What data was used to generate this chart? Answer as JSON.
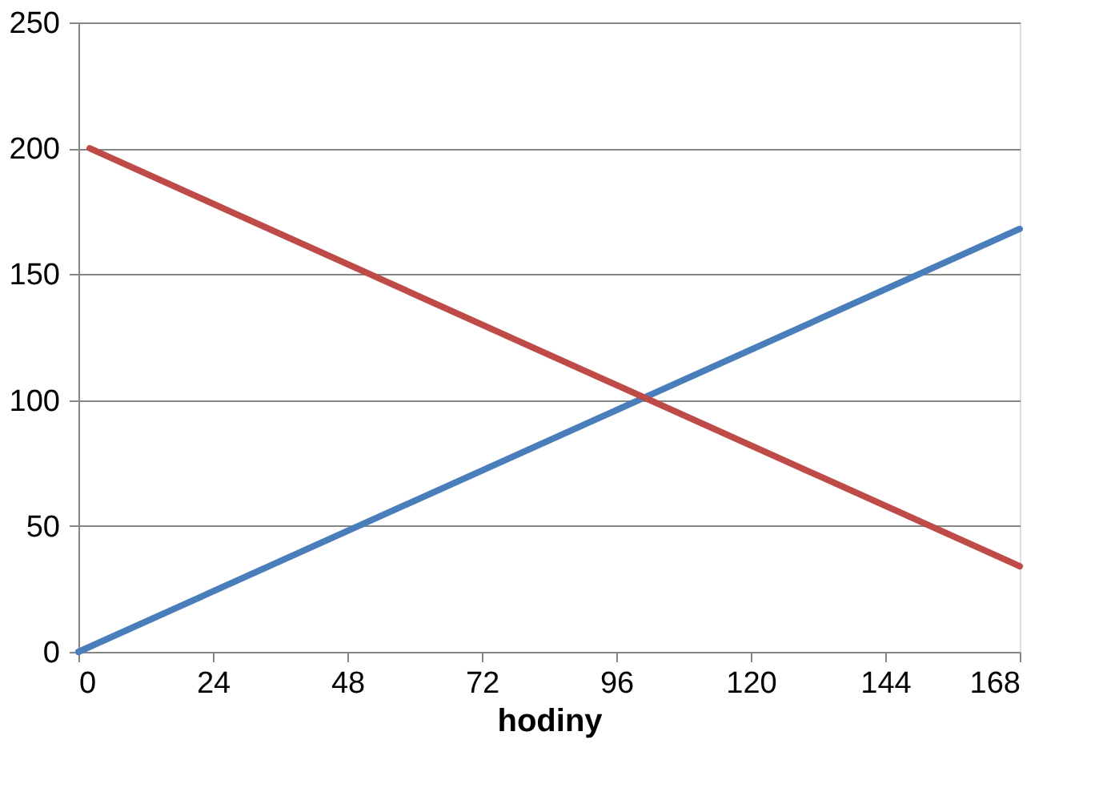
{
  "chart_data": {
    "type": "line",
    "xlabel": "hodiny",
    "xlim": [
      0,
      168
    ],
    "xticks": [
      0,
      24,
      48,
      72,
      96,
      120,
      144,
      168
    ],
    "ylim": [
      0,
      250
    ],
    "yticks": [
      0,
      50,
      100,
      150,
      200,
      250
    ],
    "grid": "y",
    "marker": "none",
    "line_style": "solid",
    "series": [
      {
        "color": "#4a7ebb",
        "x": [
          0,
          168
        ],
        "values": [
          0,
          168
        ]
      },
      {
        "color": "#be4b48",
        "x": [
          2,
          168
        ],
        "values": [
          200,
          34
        ]
      }
    ]
  }
}
